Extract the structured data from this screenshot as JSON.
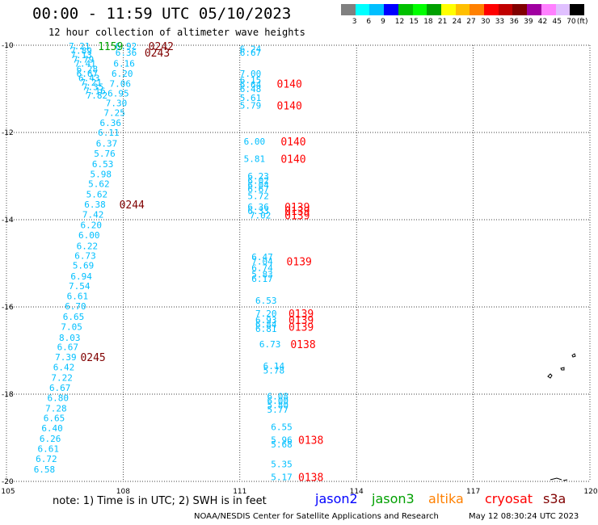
{
  "header": {
    "title": "00:00 - 11:59 UTC 05/10/2023",
    "subtitle": "12 hour collection of altimeter wave heights"
  },
  "legend": {
    "colors": [
      "#808080",
      "#00ffff",
      "#00bfff",
      "#0000ff",
      "#00c000",
      "#00ff00",
      "#00a000",
      "#ffff00",
      "#ffbf00",
      "#ff8000",
      "#ff0000",
      "#c00000",
      "#800000",
      "#a000a0",
      "#ff80ff",
      "#e0c0ff",
      "#000000"
    ],
    "labels": [
      "3",
      "6",
      "9",
      "12",
      "15",
      "18",
      "21",
      "24",
      "27",
      "30",
      "33",
      "36",
      "39",
      "42",
      "45",
      "70"
    ],
    "unit": "(ft)"
  },
  "map_axes": {
    "lon_labels": [
      "105",
      "108",
      "111",
      "114",
      "117",
      "120"
    ],
    "lat_labels": [
      "-10",
      "-12",
      "-14",
      "-16",
      "-18",
      "-20"
    ],
    "lon_range": [
      105,
      120
    ],
    "lat_range": [
      -20,
      -10
    ]
  },
  "footer": {
    "note": "note:  1) Time is in UTC;  2) SWH is in feet",
    "satellites": [
      {
        "name": "jason2",
        "color": "#0000ff"
      },
      {
        "name": "jason3",
        "color": "#00a000"
      },
      {
        "name": "altika",
        "color": "#ff8000"
      },
      {
        "name": "cryosat",
        "color": "#ff0000"
      },
      {
        "name": "s3a",
        "color": "#800000"
      }
    ],
    "credit": "NOAA/NESDIS Center for Satellite Applications and Research",
    "stamp": "May 12 08:30:24 UTC 2023"
  },
  "tracks": [
    {
      "color": "#00bfff",
      "values": [
        {
          "lon": 106.6,
          "lat": -10.02,
          "v": "7.21"
        },
        {
          "lon": 106.65,
          "lat": -10.12,
          "v": "7.89"
        },
        {
          "lon": 106.65,
          "lat": -10.22,
          "v": "7.13"
        },
        {
          "lon": 106.7,
          "lat": -10.32,
          "v": "7.79"
        },
        {
          "lon": 106.75,
          "lat": -10.42,
          "v": "7.41"
        },
        {
          "lon": 106.8,
          "lat": -10.55,
          "v": "6.28"
        },
        {
          "lon": 106.8,
          "lat": -10.65,
          "v": "6.67"
        },
        {
          "lon": 106.85,
          "lat": -10.75,
          "v": "6.43"
        },
        {
          "lon": 106.9,
          "lat": -10.85,
          "v": "7.21"
        },
        {
          "lon": 106.95,
          "lat": -10.95,
          "v": "7.35"
        },
        {
          "lon": 107.0,
          "lat": -11.05,
          "v": "7.16"
        },
        {
          "lon": 107.05,
          "lat": -11.15,
          "v": "7.82"
        }
      ]
    },
    {
      "color": "#00bfff",
      "values": [
        {
          "lon": 107.8,
          "lat": -10.02,
          "v": "6.92"
        },
        {
          "lon": 107.8,
          "lat": -10.17,
          "v": "6.36"
        },
        {
          "lon": 107.75,
          "lat": -10.42,
          "v": "6.16"
        },
        {
          "lon": 107.7,
          "lat": -10.65,
          "v": "6.20"
        },
        {
          "lon": 107.65,
          "lat": -10.88,
          "v": "7.06"
        },
        {
          "lon": 107.6,
          "lat": -11.1,
          "v": "6.95"
        },
        {
          "lon": 107.55,
          "lat": -11.32,
          "v": "7.30"
        },
        {
          "lon": 107.5,
          "lat": -11.55,
          "v": "7.25"
        },
        {
          "lon": 107.4,
          "lat": -11.78,
          "v": "6.36"
        },
        {
          "lon": 107.35,
          "lat": -12.0,
          "v": "6.11"
        },
        {
          "lon": 107.3,
          "lat": -12.25,
          "v": "6.37"
        },
        {
          "lon": 107.25,
          "lat": -12.48,
          "v": "5.76"
        },
        {
          "lon": 107.2,
          "lat": -12.72,
          "v": "6.53"
        },
        {
          "lon": 107.15,
          "lat": -12.95,
          "v": "5.98"
        },
        {
          "lon": 107.1,
          "lat": -13.18,
          "v": "5.62"
        },
        {
          "lon": 107.05,
          "lat": -13.42,
          "v": "5.62"
        },
        {
          "lon": 107.0,
          "lat": -13.65,
          "v": "6.38"
        },
        {
          "lon": 106.95,
          "lat": -13.88,
          "v": "7.42"
        },
        {
          "lon": 106.9,
          "lat": -14.12,
          "v": "6.20"
        },
        {
          "lon": 106.85,
          "lat": -14.35,
          "v": "6.00"
        },
        {
          "lon": 106.8,
          "lat": -14.6,
          "v": "6.22"
        },
        {
          "lon": 106.75,
          "lat": -14.82,
          "v": "6.73"
        },
        {
          "lon": 106.7,
          "lat": -15.05,
          "v": "5.69"
        },
        {
          "lon": 106.65,
          "lat": -15.3,
          "v": "6.94"
        },
        {
          "lon": 106.6,
          "lat": -15.52,
          "v": "7.54"
        },
        {
          "lon": 106.55,
          "lat": -15.75,
          "v": "6.61"
        },
        {
          "lon": 106.5,
          "lat": -15.98,
          "v": "6.70"
        },
        {
          "lon": 106.45,
          "lat": -16.22,
          "v": "6.65"
        },
        {
          "lon": 106.4,
          "lat": -16.45,
          "v": "7.05"
        },
        {
          "lon": 106.35,
          "lat": -16.7,
          "v": "8.03"
        },
        {
          "lon": 106.3,
          "lat": -16.92,
          "v": "6.67"
        },
        {
          "lon": 106.25,
          "lat": -17.15,
          "v": "7.39"
        },
        {
          "lon": 106.2,
          "lat": -17.38,
          "v": "6.42"
        },
        {
          "lon": 106.15,
          "lat": -17.62,
          "v": "7.22"
        },
        {
          "lon": 106.1,
          "lat": -17.85,
          "v": "6.67"
        },
        {
          "lon": 106.05,
          "lat": -18.08,
          "v": "6.80"
        },
        {
          "lon": 106.0,
          "lat": -18.32,
          "v": "7.28"
        },
        {
          "lon": 105.95,
          "lat": -18.55,
          "v": "6.65"
        },
        {
          "lon": 105.9,
          "lat": -18.78,
          "v": "6.40"
        },
        {
          "lon": 105.85,
          "lat": -19.02,
          "v": "6.26"
        },
        {
          "lon": 105.8,
          "lat": -19.25,
          "v": "6.61"
        },
        {
          "lon": 105.75,
          "lat": -19.48,
          "v": "6.72"
        },
        {
          "lon": 105.7,
          "lat": -19.72,
          "v": "6.58"
        }
      ]
    },
    {
      "color": "#00bfff",
      "values": [
        {
          "lon": 111.0,
          "lat": -10.08,
          "v": "6.24"
        },
        {
          "lon": 111.0,
          "lat": -10.17,
          "v": "6.67"
        },
        {
          "lon": 111.0,
          "lat": -10.65,
          "v": "7.00"
        },
        {
          "lon": 111.0,
          "lat": -10.8,
          "v": "6.15"
        },
        {
          "lon": 111.0,
          "lat": -10.9,
          "v": "6.64"
        },
        {
          "lon": 111.0,
          "lat": -11.0,
          "v": "6.48"
        },
        {
          "lon": 111.0,
          "lat": -11.2,
          "v": "5.61"
        },
        {
          "lon": 111.0,
          "lat": -11.38,
          "v": "5.79"
        },
        {
          "lon": 111.1,
          "lat": -12.2,
          "v": "6.00"
        },
        {
          "lon": 111.1,
          "lat": -12.6,
          "v": "5.81"
        },
        {
          "lon": 111.2,
          "lat": -13.0,
          "v": "6.23"
        },
        {
          "lon": 111.2,
          "lat": -13.1,
          "v": "6.02"
        },
        {
          "lon": 111.2,
          "lat": -13.2,
          "v": "6.04"
        },
        {
          "lon": 111.2,
          "lat": -13.3,
          "v": "6.67"
        },
        {
          "lon": 111.2,
          "lat": -13.45,
          "v": "5.72"
        },
        {
          "lon": 111.2,
          "lat": -13.7,
          "v": "6.36"
        },
        {
          "lon": 111.2,
          "lat": -13.8,
          "v": "6.33"
        },
        {
          "lon": 111.25,
          "lat": -13.9,
          "v": "7.02"
        },
        {
          "lon": 111.3,
          "lat": -14.85,
          "v": "6.47"
        },
        {
          "lon": 111.3,
          "lat": -14.95,
          "v": "7.04"
        },
        {
          "lon": 111.3,
          "lat": -15.1,
          "v": "6.74"
        },
        {
          "lon": 111.3,
          "lat": -15.25,
          "v": "5.83"
        },
        {
          "lon": 111.3,
          "lat": -15.35,
          "v": "6.17"
        },
        {
          "lon": 111.4,
          "lat": -15.85,
          "v": "6.53"
        },
        {
          "lon": 111.4,
          "lat": -16.15,
          "v": "7.20"
        },
        {
          "lon": 111.4,
          "lat": -16.3,
          "v": "6.93"
        },
        {
          "lon": 111.4,
          "lat": -16.4,
          "v": "6.84"
        },
        {
          "lon": 111.4,
          "lat": -16.5,
          "v": "6.81"
        },
        {
          "lon": 111.5,
          "lat": -16.85,
          "v": "6.73"
        },
        {
          "lon": 111.6,
          "lat": -17.35,
          "v": "6.14"
        },
        {
          "lon": 111.6,
          "lat": -17.45,
          "v": "5.78"
        },
        {
          "lon": 111.7,
          "lat": -18.05,
          "v": "6.08"
        },
        {
          "lon": 111.7,
          "lat": -18.15,
          "v": "6.00"
        },
        {
          "lon": 111.7,
          "lat": -18.25,
          "v": "5.80"
        },
        {
          "lon": 111.7,
          "lat": -18.35,
          "v": "5.77"
        },
        {
          "lon": 111.8,
          "lat": -18.75,
          "v": "6.55"
        },
        {
          "lon": 111.8,
          "lat": -19.05,
          "v": "5.96"
        },
        {
          "lon": 111.8,
          "lat": -19.15,
          "v": "5.68"
        },
        {
          "lon": 111.8,
          "lat": -19.6,
          "v": "5.35"
        },
        {
          "lon": 111.8,
          "lat": -19.9,
          "v": "5.17"
        }
      ]
    }
  ],
  "time_labels": [
    {
      "lon": 107.35,
      "lat": -10.02,
      "v": "1159",
      "color": "#00a000"
    },
    {
      "lon": 108.65,
      "lat": -10.02,
      "v": "0242",
      "color": "#800000"
    },
    {
      "lon": 108.55,
      "lat": -10.17,
      "v": "0243",
      "color": "#800000"
    },
    {
      "lon": 107.9,
      "lat": -13.65,
      "v": "0244",
      "color": "#800000"
    },
    {
      "lon": 106.9,
      "lat": -17.15,
      "v": "0245",
      "color": "#800000"
    },
    {
      "lon": 111.95,
      "lat": -10.88,
      "v": "0140",
      "color": "#ff0000"
    },
    {
      "lon": 111.95,
      "lat": -11.38,
      "v": "0140",
      "color": "#ff0000"
    },
    {
      "lon": 112.05,
      "lat": -12.2,
      "v": "0140",
      "color": "#ff0000"
    },
    {
      "lon": 112.05,
      "lat": -12.6,
      "v": "0140",
      "color": "#ff0000"
    },
    {
      "lon": 112.15,
      "lat": -13.7,
      "v": "0139",
      "color": "#ff0000"
    },
    {
      "lon": 112.15,
      "lat": -13.8,
      "v": "0139",
      "color": "#ff0000"
    },
    {
      "lon": 112.15,
      "lat": -13.9,
      "v": "0139",
      "color": "#ff0000"
    },
    {
      "lon": 112.2,
      "lat": -14.95,
      "v": "0139",
      "color": "#ff0000"
    },
    {
      "lon": 112.25,
      "lat": -16.15,
      "v": "0139",
      "color": "#ff0000"
    },
    {
      "lon": 112.25,
      "lat": -16.3,
      "v": "0139",
      "color": "#ff0000"
    },
    {
      "lon": 112.25,
      "lat": -16.45,
      "v": "0139",
      "color": "#ff0000"
    },
    {
      "lon": 112.3,
      "lat": -16.85,
      "v": "0138",
      "color": "#ff0000"
    },
    {
      "lon": 112.5,
      "lat": -19.05,
      "v": "0138",
      "color": "#ff0000"
    },
    {
      "lon": 112.5,
      "lat": -19.9,
      "v": "0138",
      "color": "#ff0000"
    }
  ]
}
